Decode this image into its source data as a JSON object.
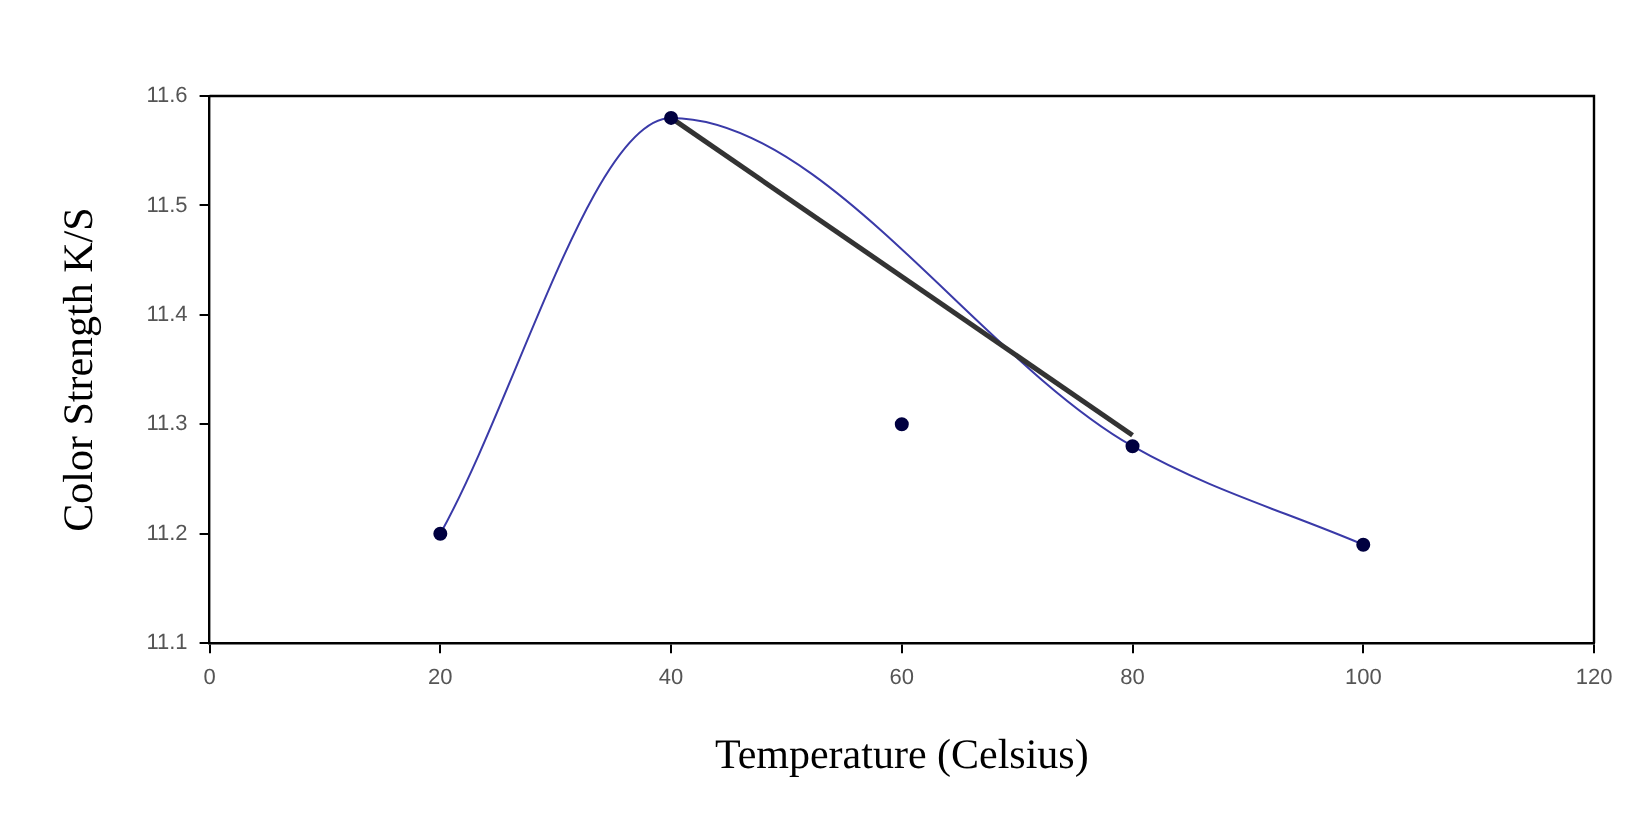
{
  "chart_data": {
    "type": "scatter",
    "xlabel": "Temperature (Celsius)",
    "ylabel": "Color Strength K/S",
    "xlim": [
      0,
      120
    ],
    "xticks": [
      0,
      20,
      40,
      60,
      80,
      100,
      120
    ],
    "ylim": [
      11.1,
      11.6
    ],
    "yticks": [
      11.1,
      11.2,
      11.3,
      11.4,
      11.5,
      11.6
    ],
    "grid": false,
    "legend": false,
    "series": [
      {
        "type": "line",
        "color": "#3a3aa8",
        "x": [
          20,
          40,
          80,
          100
        ],
        "values": [
          11.2,
          11.58,
          11.28,
          11.19
        ],
        "marker": "none"
      },
      {
        "type": "line",
        "color": "#333333",
        "x": [
          40,
          80
        ],
        "values": [
          11.58,
          11.29
        ],
        "marker": "none"
      },
      {
        "type": "scatter",
        "color": "#000040",
        "x": [
          20,
          40,
          60,
          80,
          100
        ],
        "values": [
          11.2,
          11.58,
          11.3,
          11.28,
          11.19
        ],
        "marker": "circle"
      }
    ]
  }
}
